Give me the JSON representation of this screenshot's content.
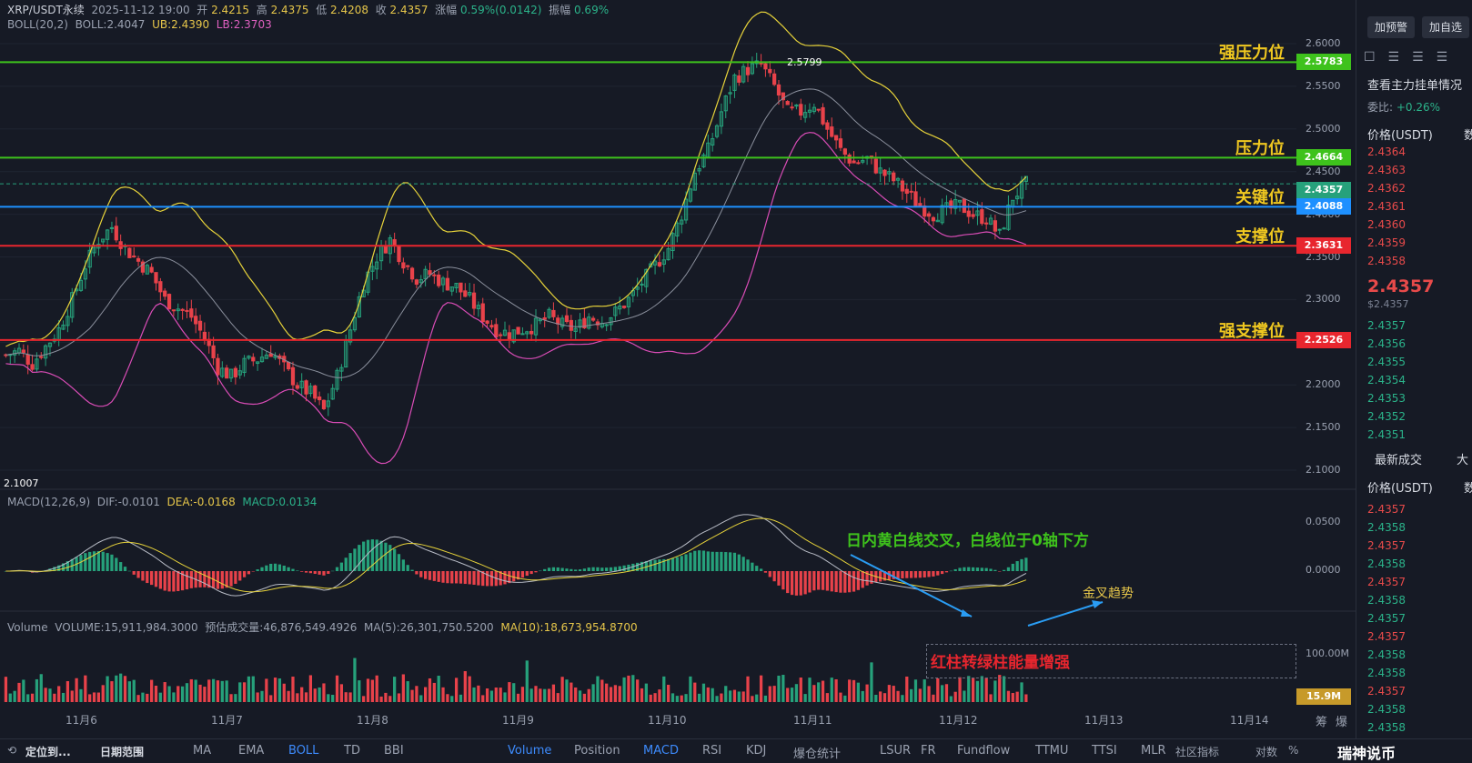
{
  "header": {
    "symbol": "XRP/USDT永续",
    "time": "2025-11-12 19:00",
    "open_label": "开",
    "open": "2.4215",
    "high_label": "高",
    "high": "2.4375",
    "low_label": "低",
    "low": "2.4208",
    "close_label": "收",
    "close": "2.4357",
    "change_label": "涨幅",
    "change": "0.59%(0.0142)",
    "amp_label": "振幅",
    "amp": "0.69%",
    "boll_name": "BOLL(20,2)",
    "boll_val": "BOLL:2.4047",
    "boll_ub": "UB:2.4390",
    "boll_lb": "LB:2.3703"
  },
  "macd_info": {
    "name": "MACD(12,26,9)",
    "dif": "DIF:-0.0101",
    "dea": "DEA:-0.0168",
    "macd": "MACD:0.0134"
  },
  "vol_info": {
    "name": "Volume",
    "vol": "VOLUME:15,911,984.3000",
    "est": "预估成交量:46,876,549.4926",
    "ma5": "MA(5):26,301,750.5200",
    "ma10": "MA(10):18,673,954.8700"
  },
  "levels": [
    {
      "label": "强压力位",
      "price": 2.5783,
      "tag": "2.5783",
      "color": "#3ec21c"
    },
    {
      "label": "压力位",
      "price": 2.4664,
      "tag": "2.4664",
      "color": "#3ec21c"
    },
    {
      "label": "关键位",
      "price": 2.4088,
      "tag": "2.4088",
      "color": "#1e90ff"
    },
    {
      "label": "支撑位",
      "price": 2.3631,
      "tag": "2.3631",
      "color": "#e8262e"
    },
    {
      "label": "强支撑位",
      "price": 2.2526,
      "tag": "2.2526",
      "color": "#e8262e"
    }
  ],
  "current_tag": "2.4357",
  "peak_label": "2.5799",
  "low_label": "2.1007",
  "annotations": {
    "cross": "日内黄白线交叉，白线位于0轴下方",
    "golden": "金叉趋势",
    "bars": "红柱转绿柱能量增强"
  },
  "vol_tag": "15.9M",
  "vol_axis": "100.00M",
  "chart_data": {
    "type": "candlestick",
    "price_axis_ticks": [
      "2.6000",
      "2.5500",
      "2.5000",
      "2.4500",
      "2.4000",
      "2.3500",
      "2.3000",
      "2.2500",
      "2.2000",
      "2.1500",
      "2.1000"
    ],
    "ylim": [
      2.1,
      2.6
    ],
    "macd_axis_ticks": [
      "0.0500",
      "0.0000"
    ],
    "x_ticks": [
      "11月6",
      "11月7",
      "11月8",
      "11月9",
      "11月10",
      "11月11",
      "11月12",
      "11月13",
      "11月14"
    ],
    "close_path": [
      2.235,
      2.24,
      2.225,
      2.245,
      2.265,
      2.3,
      2.34,
      2.37,
      2.385,
      2.36,
      2.345,
      2.33,
      2.3,
      2.29,
      2.28,
      2.255,
      2.22,
      2.21,
      2.225,
      2.23,
      2.24,
      2.22,
      2.2,
      2.19,
      2.17,
      2.21,
      2.265,
      2.32,
      2.35,
      2.37,
      2.345,
      2.325,
      2.33,
      2.32,
      2.315,
      2.3,
      2.28,
      2.265,
      2.26,
      2.265,
      2.27,
      2.28,
      2.27,
      2.265,
      2.28,
      2.275,
      2.285,
      2.3,
      2.32,
      2.34,
      2.36,
      2.4,
      2.45,
      2.475,
      2.52,
      2.56,
      2.57,
      2.575,
      2.55,
      2.52,
      2.52,
      2.53,
      2.5,
      2.475,
      2.46,
      2.465,
      2.45,
      2.44,
      2.425,
      2.41,
      2.4,
      2.405,
      2.41,
      2.4,
      2.395,
      2.375,
      2.42,
      2.4357
    ]
  },
  "panel": {
    "btn1": "加预警",
    "btn2": "加自选",
    "depth_title": "查看主力挂单情况",
    "ratio_label": "委比:",
    "ratio": "+0.26%",
    "col_price": "价格(USDT)",
    "col_qty": "数",
    "asks": [
      "2.4364",
      "2.4363",
      "2.4362",
      "2.4361",
      "2.4360",
      "2.4359",
      "2.4358"
    ],
    "last": "2.4357",
    "last_sub": "$2.4357",
    "bids": [
      "2.4357",
      "2.4356",
      "2.4355",
      "2.4354",
      "2.4353",
      "2.4352",
      "2.4351"
    ],
    "trades_tab": "最新成交",
    "trades_tab2": "大",
    "trades": [
      {
        "p": "2.4357",
        "c": "red"
      },
      {
        "p": "2.4358",
        "c": "green"
      },
      {
        "p": "2.4357",
        "c": "red"
      },
      {
        "p": "2.4358",
        "c": "green"
      },
      {
        "p": "2.4357",
        "c": "red"
      },
      {
        "p": "2.4358",
        "c": "green"
      },
      {
        "p": "2.4357",
        "c": "green"
      },
      {
        "p": "2.4357",
        "c": "red"
      },
      {
        "p": "2.4358",
        "c": "green"
      },
      {
        "p": "2.4358",
        "c": "green"
      },
      {
        "p": "2.4357",
        "c": "red"
      },
      {
        "p": "2.4358",
        "c": "green"
      },
      {
        "p": "2.4358",
        "c": "green"
      }
    ]
  },
  "bottom": {
    "locate": "定位到...",
    "range": "日期范围",
    "items": [
      "MA",
      "EMA",
      "BOLL",
      "TD",
      "BBI",
      "Volume",
      "Position",
      "MACD",
      "RSI",
      "KDJ",
      "爆仓统计",
      "LSUR",
      "FR",
      "Fundflow",
      "TTMU",
      "TTSI",
      "MLR"
    ],
    "community": "社区指标",
    "log": "对数",
    "pct": "%",
    "watermark": "瑞神说币"
  },
  "right_axis_extra": [
    "筹",
    "爆"
  ]
}
